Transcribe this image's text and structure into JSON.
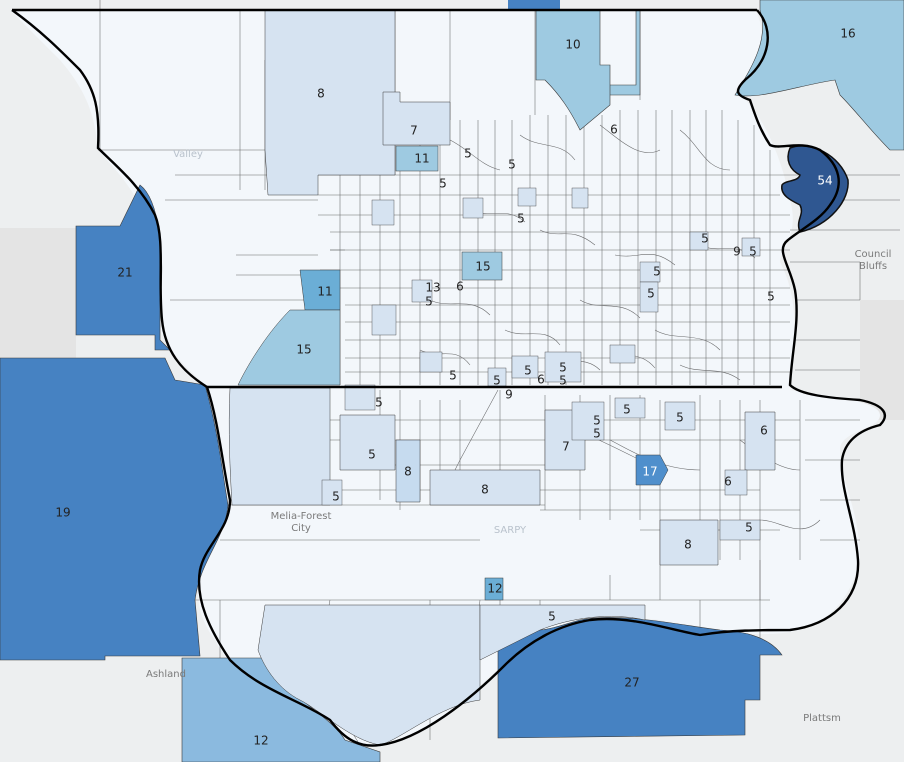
{
  "map": {
    "type": "choropleth",
    "colors": {
      "background": "#e9e9e9",
      "base": "#f3f7fb",
      "c5": "#d6e3f1",
      "c8": "#c6dbef",
      "c11": "#9ecae1",
      "c15": "#6baed6",
      "c17": "#4f8fcc",
      "c21": "#4682c2",
      "c54": "#2f5791",
      "tract_line": "#3a3a3a",
      "county_line": "#000000"
    },
    "place_labels": [
      {
        "id": "valley",
        "text": "Valley",
        "faint": true
      },
      {
        "id": "council-bluffs-1",
        "text": "Council",
        "faint": false
      },
      {
        "id": "council-bluffs-2",
        "text": "Bluffs",
        "faint": false
      },
      {
        "id": "melia-forest-1",
        "text": "Melia-Forest",
        "faint": false
      },
      {
        "id": "melia-forest-2",
        "text": "City",
        "faint": false
      },
      {
        "id": "sarpy",
        "text": "SARPY",
        "faint": true
      },
      {
        "id": "ashland",
        "text": "Ashland",
        "faint": false
      },
      {
        "id": "plattsmouth",
        "text": "Plattsm",
        "faint": false
      }
    ],
    "values": [
      {
        "id": "v16",
        "text": "16"
      },
      {
        "id": "v10",
        "text": "10"
      },
      {
        "id": "v8a",
        "text": "8"
      },
      {
        "id": "v7a",
        "text": "7"
      },
      {
        "id": "v6a",
        "text": "6"
      },
      {
        "id": "v11a",
        "text": "11"
      },
      {
        "id": "v5a",
        "text": "5"
      },
      {
        "id": "v5b",
        "text": "5"
      },
      {
        "id": "v54",
        "text": "54"
      },
      {
        "id": "v5c",
        "text": "5"
      },
      {
        "id": "v5d",
        "text": "5"
      },
      {
        "id": "v21",
        "text": "21"
      },
      {
        "id": "v15a",
        "text": "15"
      },
      {
        "id": "v5e",
        "text": "5"
      },
      {
        "id": "v9a",
        "text": "9"
      },
      {
        "id": "v5f",
        "text": "5"
      },
      {
        "id": "v11b",
        "text": "11"
      },
      {
        "id": "v13",
        "text": "13"
      },
      {
        "id": "v6b",
        "text": "6"
      },
      {
        "id": "v5g",
        "text": "5"
      },
      {
        "id": "v5h",
        "text": "5"
      },
      {
        "id": "v5i",
        "text": "5"
      },
      {
        "id": "v5j",
        "text": "5"
      },
      {
        "id": "v15b",
        "text": "15"
      },
      {
        "id": "v5k",
        "text": "5"
      },
      {
        "id": "v5l",
        "text": "5"
      },
      {
        "id": "v5m",
        "text": "5"
      },
      {
        "id": "v5n",
        "text": "5"
      },
      {
        "id": "v6c",
        "text": "6"
      },
      {
        "id": "v5o",
        "text": "5"
      },
      {
        "id": "v9b",
        "text": "9"
      },
      {
        "id": "v5p",
        "text": "5"
      },
      {
        "id": "v5q",
        "text": "5"
      },
      {
        "id": "v5r",
        "text": "5"
      },
      {
        "id": "v5s",
        "text": "5"
      },
      {
        "id": "v5t",
        "text": "5"
      },
      {
        "id": "v6d",
        "text": "6"
      },
      {
        "id": "v7b",
        "text": "7"
      },
      {
        "id": "v5u",
        "text": "5"
      },
      {
        "id": "v8b",
        "text": "8"
      },
      {
        "id": "v17",
        "text": "17"
      },
      {
        "id": "v19",
        "text": "19"
      },
      {
        "id": "v5v",
        "text": "5"
      },
      {
        "id": "v8c",
        "text": "8"
      },
      {
        "id": "v6e",
        "text": "6"
      },
      {
        "id": "v5w",
        "text": "5"
      },
      {
        "id": "v8d",
        "text": "8"
      },
      {
        "id": "v12a",
        "text": "12"
      },
      {
        "id": "v5x",
        "text": "5"
      },
      {
        "id": "v27",
        "text": "27"
      },
      {
        "id": "v12b",
        "text": "12"
      }
    ]
  }
}
